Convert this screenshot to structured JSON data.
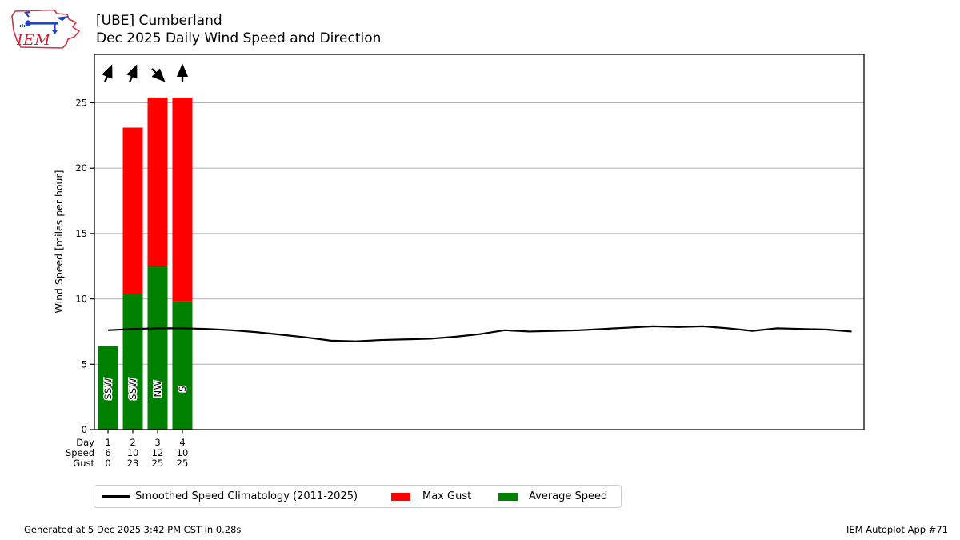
{
  "header": {
    "logo_text": "IEM",
    "title": "[UBE] Cumberland",
    "subtitle": "Dec 2025 Daily Wind Speed and Direction"
  },
  "chart_data": {
    "type": "bar",
    "title": "[UBE] Cumberland",
    "subtitle": "Dec 2025 Daily Wind Speed and Direction",
    "xlabel": "",
    "ylabel": "Wind Speed [miles per hour]",
    "ylim": [
      0,
      28.7
    ],
    "xlim": [
      0.45,
      31.5
    ],
    "yticks": [
      0,
      5,
      10,
      15,
      20,
      25
    ],
    "grid": "horizontal gridlines on",
    "legend_position": "bottom outside",
    "categories_days": [
      1,
      2,
      3,
      4
    ],
    "series": [
      {
        "name": "Average Speed",
        "type": "bar",
        "color": "#008000",
        "x": [
          1,
          2,
          3,
          4
        ],
        "values": [
          6.4,
          10.4,
          12.5,
          9.8
        ]
      },
      {
        "name": "Max Gust",
        "type": "bar",
        "color": "#ff0000",
        "x": [
          1,
          2,
          3,
          4
        ],
        "values": [
          0,
          23.1,
          25.4,
          25.4
        ]
      },
      {
        "name": "Smoothed Speed Climatology (2011-2025)",
        "type": "line",
        "color": "#000000",
        "x": [
          1,
          2,
          3,
          4,
          5,
          6,
          7,
          8,
          9,
          10,
          11,
          12,
          13,
          14,
          15,
          16,
          17,
          18,
          19,
          20,
          21,
          22,
          23,
          24,
          25,
          26,
          27,
          28,
          29,
          30,
          31
        ],
        "values": [
          7.6,
          7.7,
          7.75,
          7.75,
          7.7,
          7.6,
          7.45,
          7.25,
          7.05,
          6.8,
          6.75,
          6.85,
          6.9,
          6.95,
          7.1,
          7.3,
          7.6,
          7.5,
          7.55,
          7.6,
          7.7,
          7.8,
          7.9,
          7.85,
          7.9,
          7.75,
          7.55,
          7.75,
          7.7,
          7.65,
          7.5
        ]
      }
    ],
    "wind_directions": {
      "labels": [
        "SSW",
        "SSW",
        "NW",
        "S"
      ],
      "arrow_bearing_toward_deg": [
        22.5,
        22.5,
        135,
        0
      ]
    },
    "value_table": {
      "row_labels": [
        "Day",
        "Speed",
        "Gust"
      ],
      "rows": [
        [
          "1",
          "2",
          "3",
          "4"
        ],
        [
          "6",
          "10",
          "12",
          "10"
        ],
        [
          "0",
          "23",
          "25",
          "25"
        ]
      ]
    },
    "colors": {
      "max_gust": "#ff0000",
      "average_speed": "#008000",
      "climatology_line": "#000000",
      "gridline": "#b0b0b0",
      "axis": "#000000"
    }
  },
  "legend": {
    "items": [
      {
        "kind": "line",
        "color": "#000000",
        "label": "Smoothed Speed Climatology (2011-2025)"
      },
      {
        "kind": "swatch",
        "color": "#ff0000",
        "label": "Max Gust"
      },
      {
        "kind": "swatch",
        "color": "#008000",
        "label": "Average Speed"
      }
    ]
  },
  "footer": {
    "left": "Generated at 5 Dec 2025 3:42 PM CST in 0.28s",
    "right": "IEM Autoplot App #71"
  }
}
